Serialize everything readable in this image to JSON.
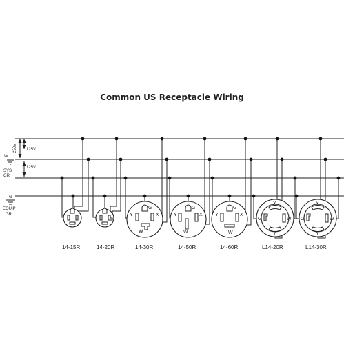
{
  "title": "Common US Receptacle Wiring",
  "side_labels": {
    "v250": "250V",
    "v125_top": "125V",
    "v125_mid": "125V",
    "w": "W",
    "sys": "SYS",
    "gr1": "GR",
    "g": "G",
    "equip": "EQUIP",
    "gr2": "GR"
  },
  "receptacles": [
    {
      "id": "14-15r",
      "caption": "14-15R"
    },
    {
      "id": "14-20r",
      "caption": "14-20R"
    },
    {
      "id": "14-30r",
      "caption": "14-30R",
      "terminals": {
        "g": "G",
        "x": "X",
        "y": "Y",
        "w": "W"
      }
    },
    {
      "id": "14-50r",
      "caption": "14-50R",
      "terminals": {
        "g": "G",
        "x": "X",
        "y": "Y",
        "w": "W"
      }
    },
    {
      "id": "14-60r",
      "caption": "14-60R",
      "terminals": {
        "g": "G",
        "x": "X",
        "y": "Y",
        "w": "W"
      }
    },
    {
      "id": "l14-20r",
      "caption": "L14-20R",
      "terminals": {
        "g": "G",
        "x": "X",
        "y": "Y",
        "w": "W"
      }
    },
    {
      "id": "l14-30r",
      "caption": "L14-30R",
      "terminals": {
        "g": "G",
        "x": "X",
        "y": "Y",
        "w": "W"
      }
    }
  ]
}
